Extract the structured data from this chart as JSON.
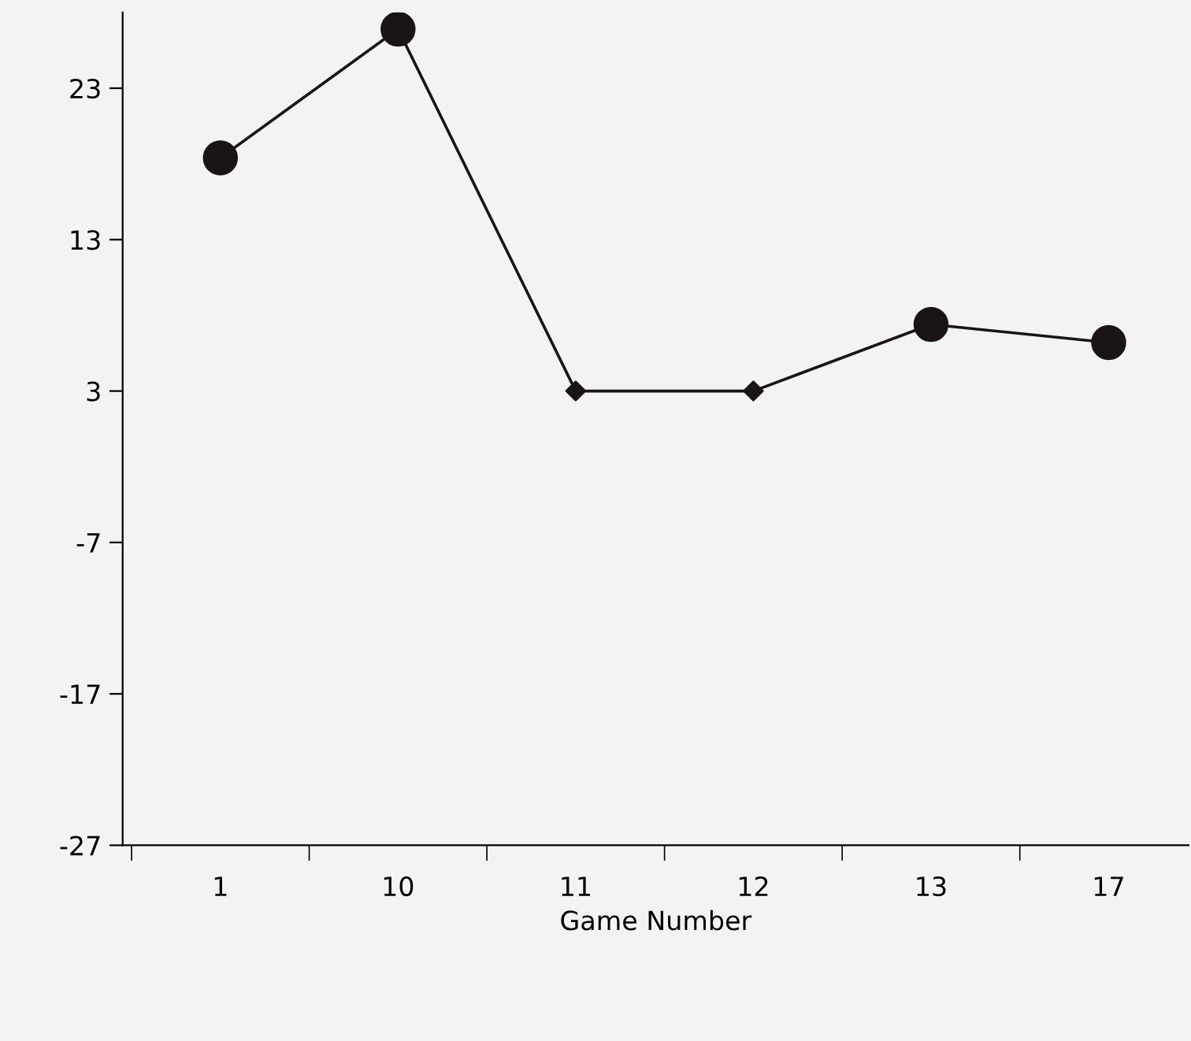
{
  "chart_data": {
    "type": "line",
    "xlabel": "Game Number",
    "categories": [
      "1",
      "10",
      "11",
      "12",
      "13",
      "17"
    ],
    "series": [
      {
        "color": "#1a1414",
        "values": [
          18.4,
          26.9,
          3,
          3,
          7.4,
          6.2
        ],
        "marker": "none"
      },
      {
        "type": "scatter",
        "color": "#1a1414",
        "x": [
          "1",
          "10",
          "13",
          "17"
        ],
        "values": [
          18.4,
          26.9,
          7.4,
          6.2
        ],
        "marker": "circle"
      },
      {
        "type": "scatter",
        "color": "#1a1414",
        "x": [
          "11",
          "12"
        ],
        "values": [
          3,
          3
        ],
        "marker": "diamond"
      }
    ],
    "ylim": [
      -27,
      28
    ],
    "yticks": [
      -27,
      -17,
      -7,
      3,
      13,
      23
    ],
    "grid": false
  }
}
